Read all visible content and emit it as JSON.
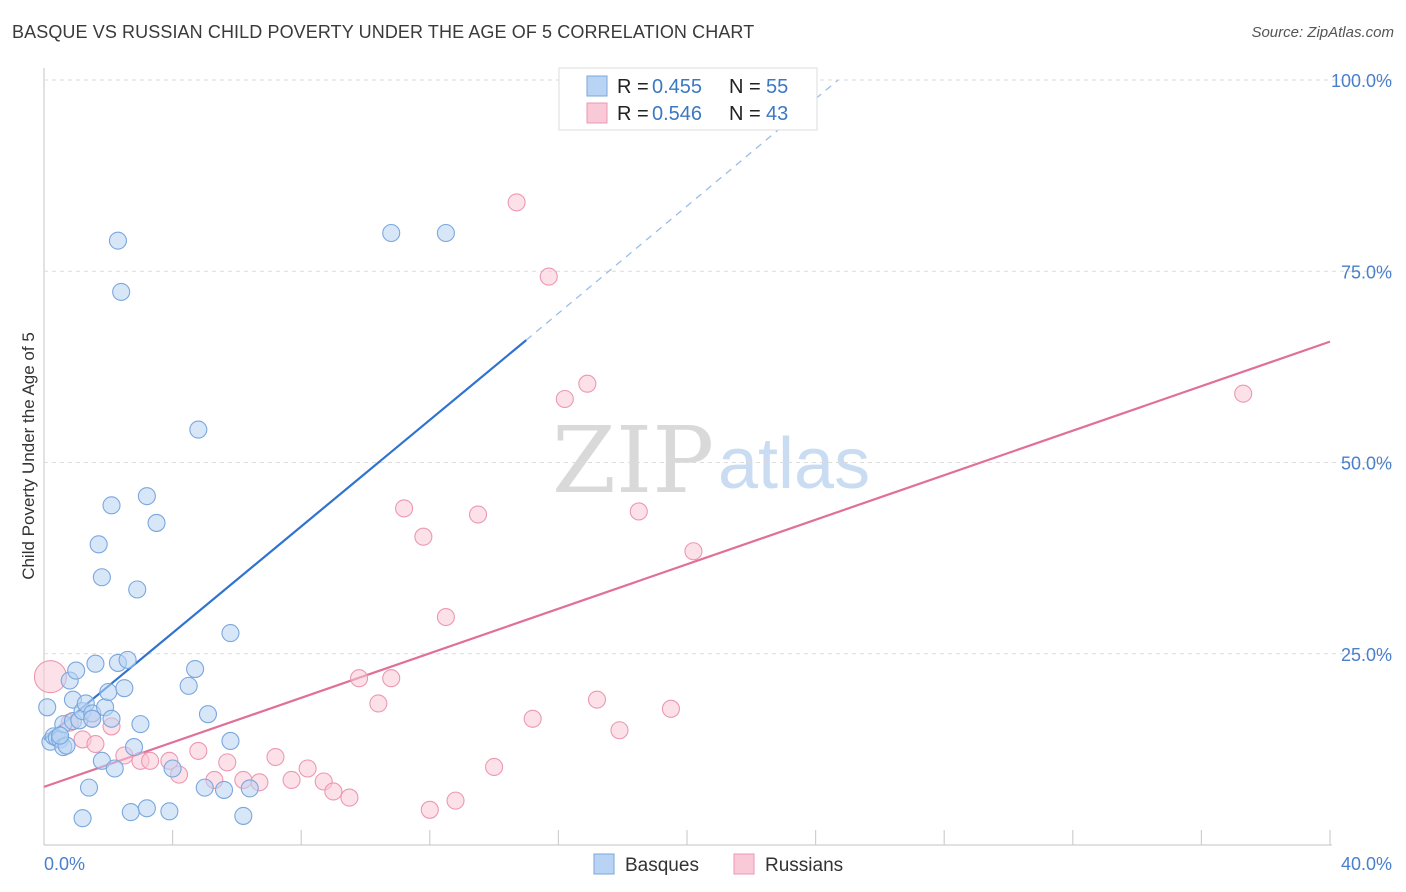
{
  "title": "BASQUE VS RUSSIAN CHILD POVERTY UNDER THE AGE OF 5 CORRELATION CHART",
  "source": "Source: ZipAtlas.com",
  "watermark": {
    "zip": "ZIP",
    "atlas": "atlas"
  },
  "legend_top": {
    "rows": [
      {
        "r_label": "R = ",
        "r_value": "0.455",
        "n_label": "N = ",
        "n_value": "55"
      },
      {
        "r_label": "R = ",
        "r_value": "0.546",
        "n_label": "N = ",
        "n_value": "43"
      }
    ]
  },
  "legend_bottom": {
    "basques": "Basques",
    "russians": "Russians"
  },
  "colors": {
    "basque_fill": "#b8d3f3",
    "basque_stroke": "#7aa7de",
    "basque_line": "#2f73cf",
    "russian_fill": "#f9c9d7",
    "russian_stroke": "#ec98b2",
    "russian_line": "#e0709a",
    "tick": "#4a7fcb"
  },
  "chart_data": {
    "type": "scatter",
    "title": "BASQUE VS RUSSIAN CHILD POVERTY UNDER THE AGE OF 5 CORRELATION CHART",
    "xlabel": "",
    "ylabel": "Child Poverty Under the Age of 5",
    "xlim": [
      0,
      40
    ],
    "ylim": [
      0,
      100
    ],
    "x_tick_labels": [
      "0.0%",
      "40.0%"
    ],
    "y_ticks": [
      25,
      50,
      75,
      100
    ],
    "y_tick_labels": [
      "25.0%",
      "50.0%",
      "75.0%",
      "100.0%"
    ],
    "series": [
      {
        "name": "Basques",
        "R": 0.455,
        "N": 55,
        "trend": {
          "x0": 0,
          "y0": 13.8,
          "x1": 15,
          "y1": 66,
          "dashed_to_x": 24.7,
          "dashed_to_y": 100
        },
        "points": [
          [
            0.1,
            18.0
          ],
          [
            0.2,
            13.5
          ],
          [
            0.3,
            14.2
          ],
          [
            0.4,
            14.0
          ],
          [
            0.5,
            13.8
          ],
          [
            0.6,
            15.8
          ],
          [
            0.6,
            12.8
          ],
          [
            0.7,
            13.0
          ],
          [
            0.8,
            21.5
          ],
          [
            0.9,
            19.0
          ],
          [
            0.9,
            16.2
          ],
          [
            1.0,
            22.8
          ],
          [
            1.1,
            16.3
          ],
          [
            1.2,
            17.5
          ],
          [
            1.3,
            18.5
          ],
          [
            1.4,
            7.5
          ],
          [
            1.5,
            17.2
          ],
          [
            1.5,
            16.5
          ],
          [
            1.6,
            23.7
          ],
          [
            1.7,
            39.3
          ],
          [
            1.8,
            35.0
          ],
          [
            1.8,
            11.0
          ],
          [
            1.9,
            18.0
          ],
          [
            2.0,
            20.0
          ],
          [
            2.1,
            44.4
          ],
          [
            2.1,
            16.5
          ],
          [
            2.2,
            10.0
          ],
          [
            2.3,
            79.0
          ],
          [
            2.3,
            23.8
          ],
          [
            2.4,
            72.3
          ],
          [
            2.5,
            20.5
          ],
          [
            2.6,
            24.2
          ],
          [
            2.7,
            4.3
          ],
          [
            2.8,
            12.8
          ],
          [
            2.9,
            33.4
          ],
          [
            3.0,
            15.8
          ],
          [
            3.2,
            45.6
          ],
          [
            3.2,
            4.8
          ],
          [
            3.5,
            42.1
          ],
          [
            3.9,
            4.4
          ],
          [
            4.0,
            10.0
          ],
          [
            4.5,
            20.8
          ],
          [
            4.7,
            23.0
          ],
          [
            4.8,
            54.3
          ],
          [
            5.0,
            7.5
          ],
          [
            5.1,
            17.1
          ],
          [
            5.6,
            7.2
          ],
          [
            5.8,
            27.7
          ],
          [
            5.8,
            13.6
          ],
          [
            6.2,
            3.8
          ],
          [
            6.4,
            7.4
          ],
          [
            10.8,
            80.0
          ],
          [
            12.5,
            80.0
          ],
          [
            1.2,
            3.5
          ],
          [
            0.5,
            14.3
          ]
        ]
      },
      {
        "name": "Russians",
        "R": 0.546,
        "N": 43,
        "trend": {
          "x0": 0,
          "y0": 7.6,
          "x1": 40,
          "y1": 65.8
        },
        "points": [
          [
            0.2,
            22.0
          ],
          [
            0.8,
            16.0
          ],
          [
            1.2,
            13.8
          ],
          [
            1.5,
            16.5
          ],
          [
            1.6,
            13.2
          ],
          [
            2.1,
            15.5
          ],
          [
            2.5,
            11.7
          ],
          [
            3.0,
            11.0
          ],
          [
            3.3,
            11.0
          ],
          [
            3.9,
            11.0
          ],
          [
            4.2,
            9.2
          ],
          [
            4.8,
            12.3
          ],
          [
            5.3,
            8.5
          ],
          [
            5.7,
            10.8
          ],
          [
            6.2,
            8.5
          ],
          [
            6.7,
            8.2
          ],
          [
            7.2,
            11.5
          ],
          [
            7.7,
            8.5
          ],
          [
            8.2,
            10.0
          ],
          [
            8.7,
            8.3
          ],
          [
            9.0,
            7.0
          ],
          [
            9.5,
            6.2
          ],
          [
            9.8,
            21.8
          ],
          [
            10.4,
            18.5
          ],
          [
            10.8,
            21.8
          ],
          [
            11.2,
            44.0
          ],
          [
            11.8,
            40.3
          ],
          [
            12.0,
            4.6
          ],
          [
            12.5,
            29.8
          ],
          [
            12.8,
            5.8
          ],
          [
            13.5,
            43.2
          ],
          [
            14.0,
            10.2
          ],
          [
            14.7,
            84.0
          ],
          [
            15.2,
            16.5
          ],
          [
            15.7,
            74.3
          ],
          [
            16.2,
            58.3
          ],
          [
            16.9,
            60.3
          ],
          [
            17.2,
            19.0
          ],
          [
            17.9,
            15.0
          ],
          [
            18.5,
            43.6
          ],
          [
            19.5,
            17.8
          ],
          [
            20.2,
            38.4
          ],
          [
            37.3,
            59.0
          ]
        ]
      }
    ]
  }
}
